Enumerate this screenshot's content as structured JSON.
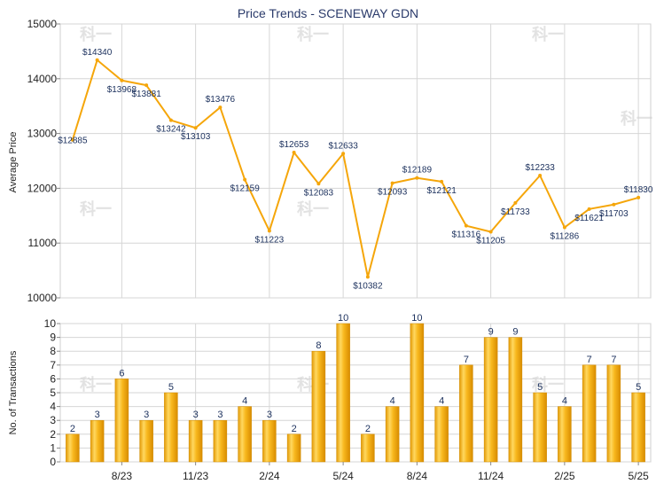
{
  "chart_data": [
    {
      "type": "line",
      "title": "Price Trends - SCENEWAY GDN",
      "ylabel": "Average Price",
      "ylim": [
        10000,
        15000
      ],
      "yticks": [
        10000,
        11000,
        12000,
        13000,
        14000,
        15000
      ],
      "grid": true,
      "line_color": "#f5a60a",
      "value_prefix": "$",
      "x": [
        "6/23",
        "7/23",
        "8/23",
        "9/23",
        "10/23",
        "11/23",
        "12/23",
        "1/24",
        "2/24",
        "3/24",
        "4/24",
        "5/24",
        "6/24",
        "7/24",
        "8/24",
        "9/24",
        "10/24",
        "11/24",
        "12/24",
        "1/25",
        "2/25",
        "3/25",
        "4/25",
        "5/25"
      ],
      "values": [
        12885,
        14340,
        13968,
        13881,
        13242,
        13103,
        13476,
        12159,
        11223,
        12653,
        12083,
        12633,
        10382,
        12093,
        12189,
        12121,
        11316,
        11205,
        11733,
        12233,
        11286,
        11621,
        11703,
        11830
      ]
    },
    {
      "type": "bar",
      "ylabel": "No. of Transactions",
      "ylim": [
        0,
        10
      ],
      "yticks": [
        0,
        1,
        2,
        3,
        4,
        5,
        6,
        7,
        8,
        9,
        10
      ],
      "grid": true,
      "bar_color": "#f5b417",
      "categories": [
        "6/23",
        "7/23",
        "8/23",
        "9/23",
        "10/23",
        "11/23",
        "12/23",
        "1/24",
        "2/24",
        "3/24",
        "4/24",
        "5/24",
        "6/24",
        "7/24",
        "8/24",
        "9/24",
        "10/24",
        "11/24",
        "12/24",
        "1/25",
        "2/25",
        "3/25",
        "4/25",
        "5/25"
      ],
      "values": [
        2,
        3,
        6,
        3,
        5,
        3,
        3,
        4,
        3,
        2,
        8,
        10,
        2,
        4,
        10,
        4,
        7,
        9,
        9,
        5,
        4,
        7,
        7,
        5
      ],
      "x_tick_labels": [
        "8/23",
        "11/23",
        "2/24",
        "5/24",
        "8/24",
        "11/24",
        "2/25",
        "5/25"
      ]
    }
  ],
  "watermark": "科一"
}
